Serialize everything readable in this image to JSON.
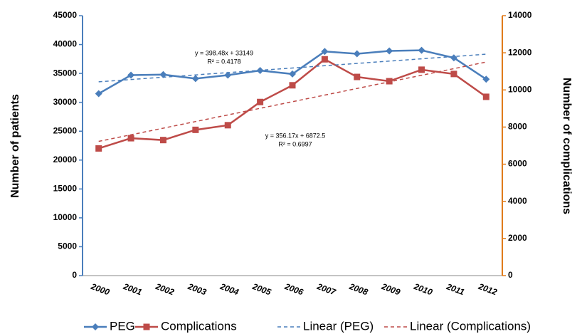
{
  "chart_data": {
    "type": "line",
    "categories": [
      "2000",
      "2001",
      "2002",
      "2003",
      "2004",
      "2005",
      "2006",
      "2007",
      "2008",
      "2009",
      "2010",
      "2011",
      "2012"
    ],
    "ylabel": "Number of patients",
    "y2label": "Number of complications",
    "ylim": [
      0,
      45000
    ],
    "yticks": [
      0,
      5000,
      10000,
      15000,
      20000,
      25000,
      30000,
      35000,
      40000,
      45000
    ],
    "y2lim": [
      0,
      14000
    ],
    "y2ticks": [
      0,
      2000,
      4000,
      6000,
      8000,
      10000,
      12000,
      14000
    ],
    "grid": false,
    "legend": "bottom",
    "series": [
      {
        "name": "PEG",
        "color": "#4a7ebb",
        "marker": "diamond",
        "style": "solid",
        "values": [
          31500,
          34700,
          34800,
          34100,
          34700,
          35500,
          34900,
          38800,
          38400,
          38900,
          39000,
          37700,
          34000
        ]
      },
      {
        "name": "Complications",
        "color": "#be4b48",
        "marker": "square",
        "style": "solid",
        "axis": "y2",
        "values": [
          6850,
          7400,
          7300,
          7850,
          8100,
          9350,
          10250,
          11650,
          10700,
          10470,
          11090,
          10860,
          9630
        ]
      },
      {
        "name": "Linear (PEG)",
        "color": "#4a7ebb",
        "marker": "none",
        "style": "dashed",
        "values": [
          33547,
          33946,
          34344,
          34743,
          35141,
          35540,
          35938,
          36337,
          36735,
          37134,
          37532,
          37931,
          38329
        ]
      },
      {
        "name": "Linear (Complications)",
        "color": "#be4b48",
        "marker": "none",
        "style": "dashed",
        "axis": "y2",
        "values": [
          7229,
          7585,
          7941,
          8297,
          8653,
          9010,
          9366,
          9722,
          10078,
          10434,
          10790,
          11147,
          11503
        ]
      }
    ],
    "annotations": [
      "y = 398.48x + 33149",
      "R² = 0.4178",
      "y = 356.17x + 6872.5",
      "R² = 0.6997"
    ]
  }
}
